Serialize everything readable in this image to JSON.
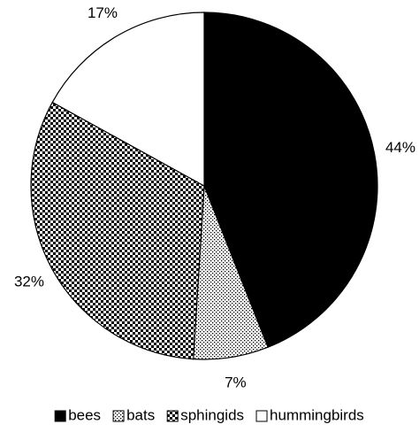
{
  "chart_data": {
    "type": "pie",
    "categories": [
      "bees",
      "bats",
      "sphingids",
      "hummingbirds"
    ],
    "values": [
      44,
      7,
      32,
      17
    ],
    "value_labels": [
      "44%",
      "7%",
      "32%",
      "17%"
    ],
    "patterns": [
      "solid",
      "dots",
      "checker",
      "none"
    ],
    "start_angle": 0,
    "direction": "clockwise",
    "legend": "bottom"
  }
}
